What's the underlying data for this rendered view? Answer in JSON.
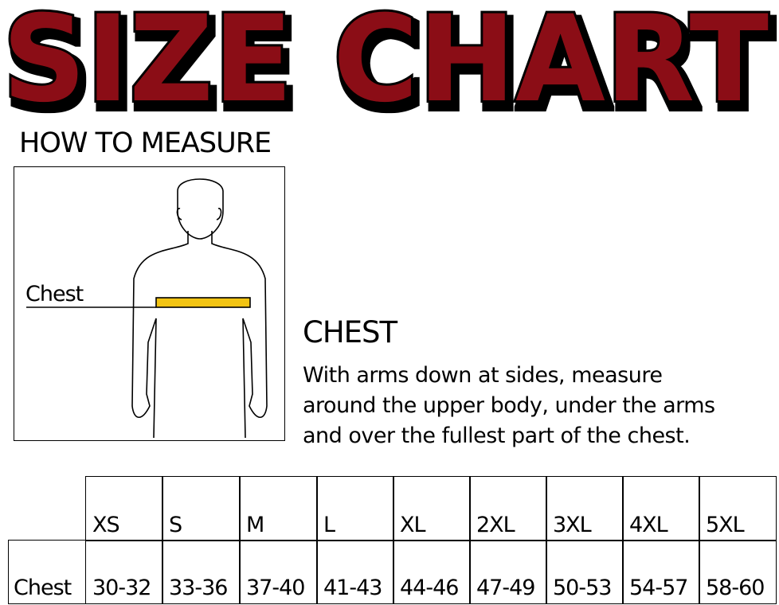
{
  "title": "SIZE CHART",
  "colors": {
    "title_fill": "#8b1014",
    "title_outline": "#000000",
    "tape": "#f2c413"
  },
  "how_to_measure": {
    "heading": "HOW TO MEASURE",
    "figure_label": "Chest"
  },
  "instructions": {
    "heading": "CHEST",
    "lines": [
      "With arms down at sides, measure",
      "around the upper body, under the arms",
      "and over the fullest part of the chest."
    ]
  },
  "table": {
    "sizes": [
      "XS",
      "S",
      "M",
      "L",
      "XL",
      "2XL",
      "3XL",
      "4XL",
      "5XL"
    ],
    "row_label": "Chest",
    "values": [
      "30-32",
      "33-36",
      "37-40",
      "41-43",
      "44-46",
      "47-49",
      "50-53",
      "54-57",
      "58-60"
    ]
  }
}
